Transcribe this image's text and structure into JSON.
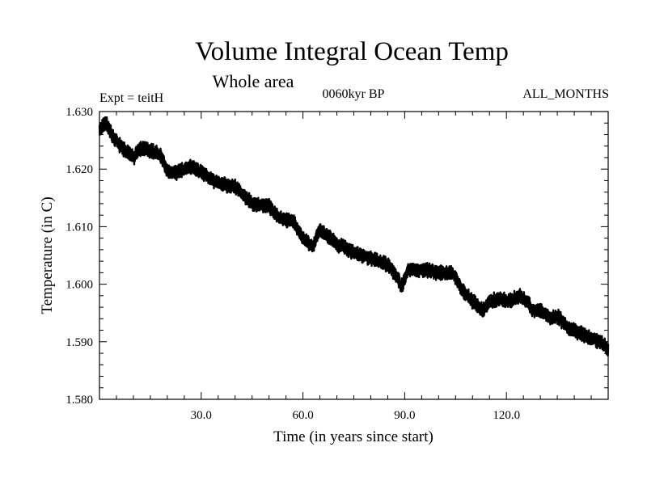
{
  "chart_data": {
    "type": "line",
    "title": "Volume Integral Ocean Temp",
    "subtitle": "Whole area",
    "annotations": {
      "left": "Expt = teitH",
      "center": "0060kyr BP",
      "right": "ALL_MONTHS"
    },
    "xlabel": "Time (in years since start)",
    "ylabel": "Temperature (in C)",
    "xlim": [
      0,
      150
    ],
    "ylim": [
      1.58,
      1.63
    ],
    "xticks": [
      30,
      60,
      90,
      120
    ],
    "xtick_labels": [
      "30.0",
      "60.0",
      "90.0",
      "120.0"
    ],
    "yticks": [
      1.58,
      1.59,
      1.6,
      1.61,
      1.62,
      1.63
    ],
    "ytick_labels": [
      "1.580",
      "1.590",
      "1.600",
      "1.610",
      "1.620",
      "1.630"
    ],
    "grid": false,
    "series": [
      {
        "name": "Volume Integral Ocean Temp",
        "color": "#000000",
        "noise_amplitude": 0.0011,
        "x": [
          0,
          2,
          4,
          7,
          10,
          12,
          14,
          18,
          20,
          23,
          27,
          30,
          35,
          40,
          45,
          50,
          53,
          57,
          60,
          63,
          65,
          70,
          75,
          80,
          85,
          88,
          89,
          91,
          95,
          100,
          104,
          107,
          110,
          113,
          115,
          118,
          121,
          124,
          126,
          128,
          130,
          133,
          135,
          138,
          140,
          143,
          145,
          148,
          150
        ],
        "y": [
          1.6268,
          1.628,
          1.6255,
          1.6235,
          1.622,
          1.6235,
          1.6235,
          1.6225,
          1.6195,
          1.6195,
          1.6205,
          1.6195,
          1.6175,
          1.617,
          1.614,
          1.6135,
          1.6115,
          1.611,
          1.608,
          1.6065,
          1.6095,
          1.607,
          1.6055,
          1.6045,
          1.6035,
          1.601,
          1.5995,
          1.6025,
          1.6025,
          1.602,
          1.602,
          1.599,
          1.597,
          1.5955,
          1.597,
          1.5975,
          1.597,
          1.598,
          1.597,
          1.5955,
          1.5955,
          1.594,
          1.5945,
          1.5925,
          1.592,
          1.591,
          1.5905,
          1.59,
          1.5885
        ]
      }
    ]
  }
}
